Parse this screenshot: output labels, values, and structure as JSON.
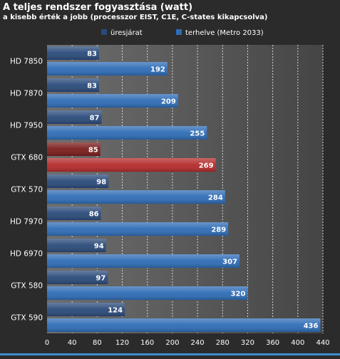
{
  "chart_data": {
    "type": "bar",
    "orientation": "horizontal",
    "title": "A teljes rendszer fogyasztása (watt)",
    "subtitle": "a kisebb érték a jobb (processzor EIST, C1E, C-states kikapcsolva)",
    "categories": [
      "HD 7850",
      "HD 7870",
      "HD 7950",
      "GTX 680",
      "GTX 570",
      "HD 7970",
      "HD 6970",
      "GTX 580",
      "GTX 590"
    ],
    "series": [
      {
        "name": "üresjárat",
        "values": [
          83,
          83,
          87,
          85,
          98,
          86,
          94,
          97,
          124
        ]
      },
      {
        "name": "terhelve (Metro 2033)",
        "values": [
          192,
          209,
          255,
          269,
          284,
          289,
          307,
          320,
          436
        ]
      }
    ],
    "xlim": [
      0,
      440
    ],
    "xticks": [
      0,
      40,
      80,
      120,
      160,
      200,
      240,
      280,
      320,
      360,
      400,
      440
    ],
    "grid": true,
    "legend": "top-center",
    "highlight_category": "GTX 680",
    "colors": {
      "background": "#2b2b2b",
      "plot_background_light": "#6e6e6e",
      "plot_background_dark": "#454545",
      "grid": "#d6d6d6",
      "idle": "#2a4a7a",
      "load": "#2e6cb6",
      "highlight_idle": "#7a1c1c",
      "highlight_load": "#b42b2b",
      "text": "#ffffff",
      "footer_line": "#3a8fd0"
    }
  }
}
